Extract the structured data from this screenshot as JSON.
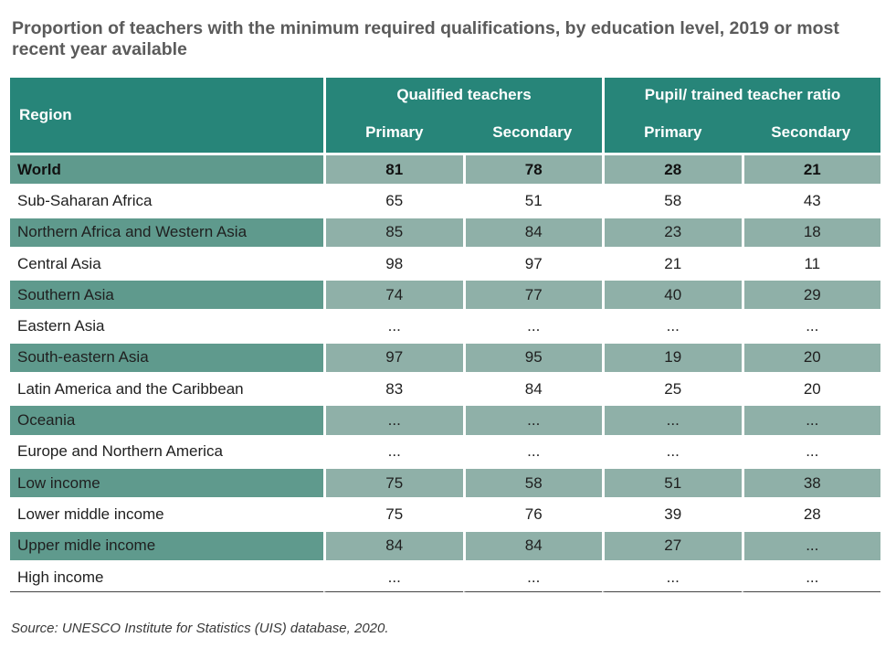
{
  "title": "Proportion of teachers with the minimum required qualifications, by education level, 2019 or most recent year available",
  "source": "Source: UNESCO Institute for Statistics (UIS) database, 2020.",
  "chart_data": {
    "type": "table",
    "header": {
      "region": "Region",
      "groups": [
        "Qualified teachers",
        "Pupil/ trained teacher ratio"
      ],
      "columns": [
        "Primary",
        "Secondary",
        "Primary",
        "Secondary"
      ]
    },
    "rows": [
      {
        "name": "World",
        "values": [
          "81",
          "78",
          "28",
          "21"
        ]
      },
      {
        "name": "Sub-Saharan Africa",
        "values": [
          "65",
          "51",
          "58",
          "43"
        ]
      },
      {
        "name": "Northern Africa and Western Asia",
        "values": [
          "85",
          "84",
          "23",
          "18"
        ]
      },
      {
        "name": "Central Asia",
        "values": [
          "98",
          "97",
          "21",
          "11"
        ]
      },
      {
        "name": "Southern Asia",
        "values": [
          "74",
          "77",
          "40",
          "29"
        ]
      },
      {
        "name": "Eastern Asia",
        "values": [
          "...",
          "...",
          "...",
          "..."
        ]
      },
      {
        "name": "South-eastern Asia",
        "values": [
          "97",
          "95",
          "19",
          "20"
        ]
      },
      {
        "name": "Latin America and the Caribbean",
        "values": [
          "83",
          "84",
          "25",
          "20"
        ]
      },
      {
        "name": "Oceania",
        "values": [
          "...",
          "...",
          "...",
          "..."
        ]
      },
      {
        "name": "Europe and Northern America",
        "values": [
          "...",
          "...",
          "...",
          "..."
        ]
      },
      {
        "name": "Low income",
        "values": [
          "75",
          "58",
          "51",
          "38"
        ]
      },
      {
        "name": "Lower middle income",
        "values": [
          "75",
          "76",
          "39",
          "28"
        ]
      },
      {
        "name": "Upper midle income",
        "values": [
          "84",
          "84",
          "27",
          "..."
        ]
      },
      {
        "name": "High income",
        "values": [
          "...",
          "...",
          "...",
          "..."
        ]
      }
    ]
  },
  "colors": {
    "header": "#278579",
    "shaded_name": "#5f9a8d",
    "shaded_value": "#8fb0a8",
    "title": "#5b5b5b"
  }
}
